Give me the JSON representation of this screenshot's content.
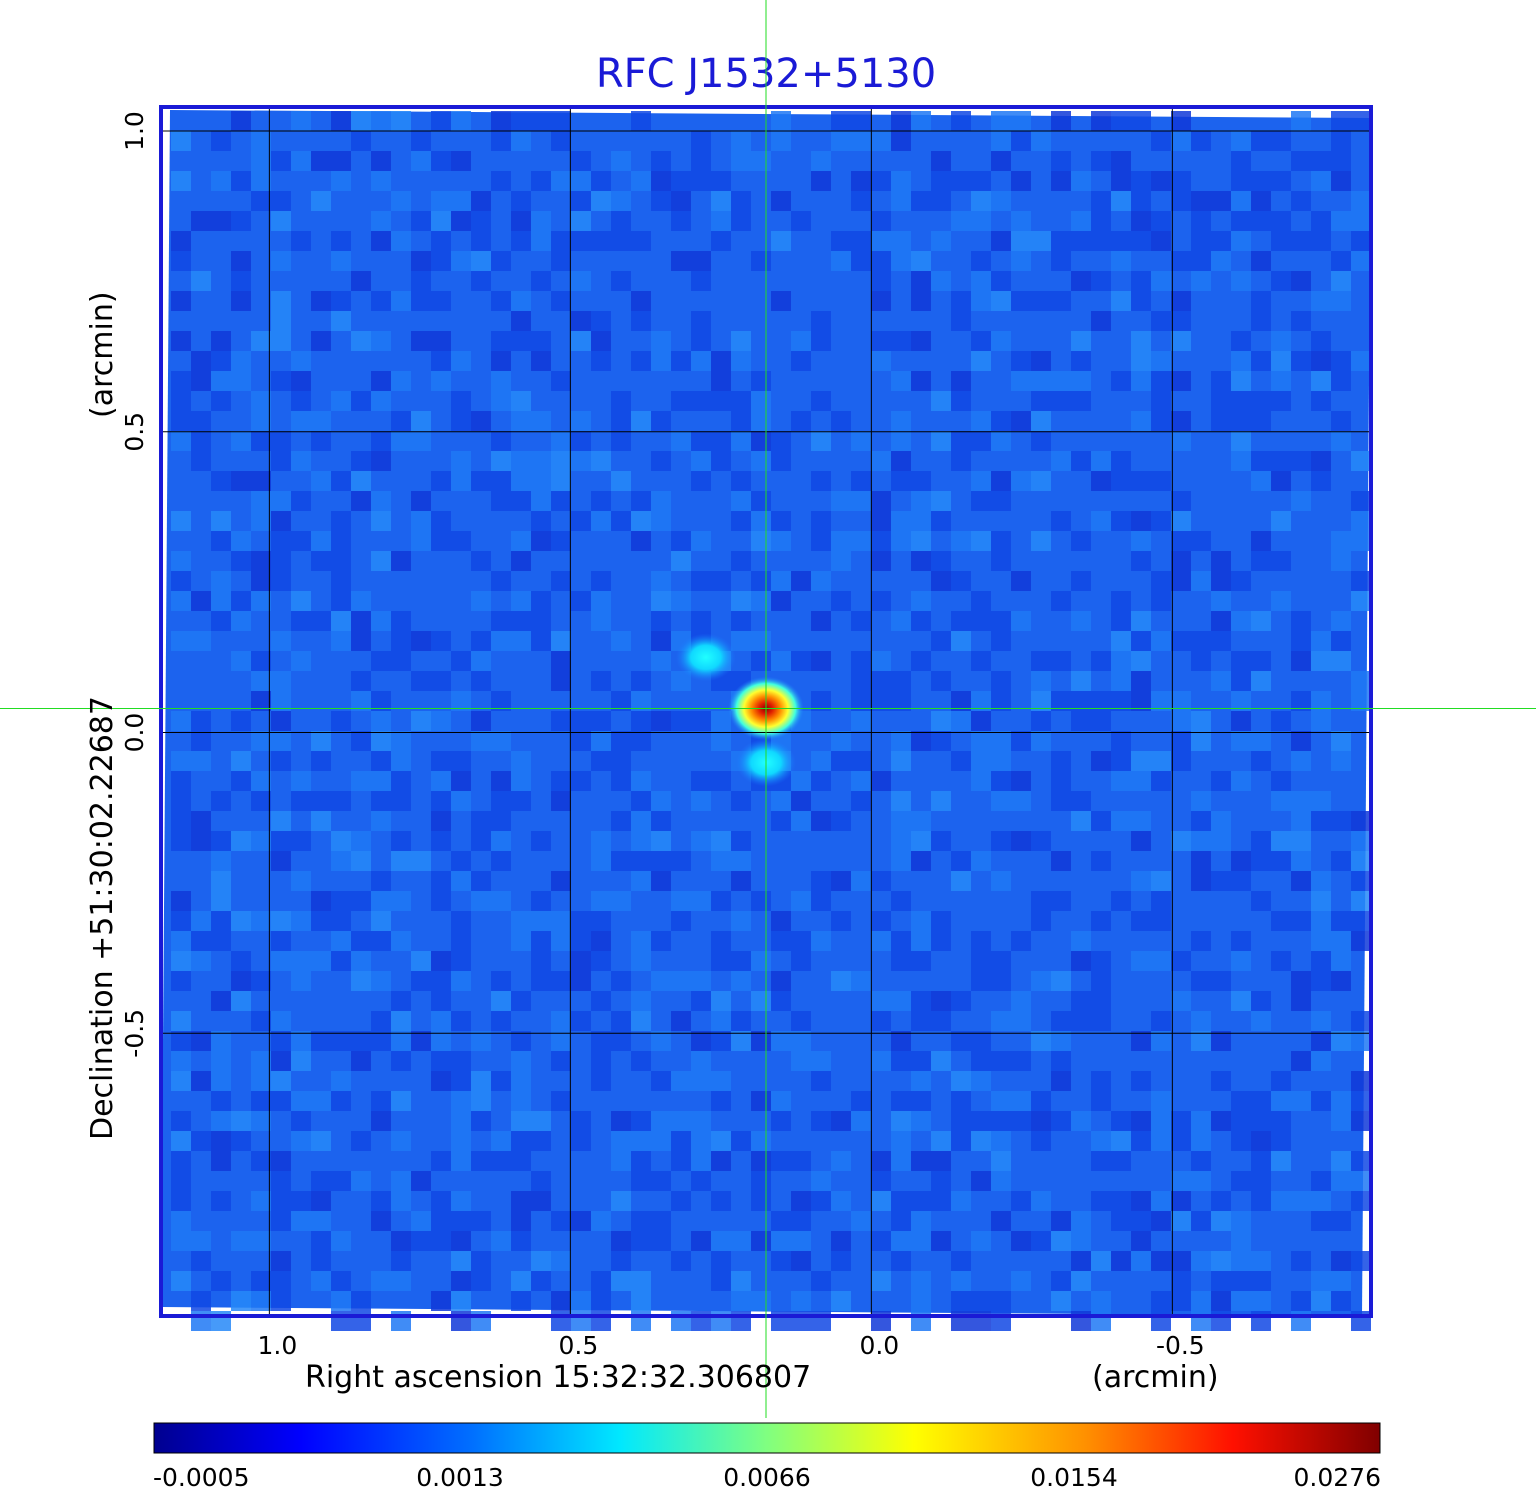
{
  "chart_data": {
    "type": "heatmap",
    "title": "RFC J1532+5130",
    "xlabel": "Right ascension  15:32:32.306807",
    "xunit": "(arcmin)",
    "ylabel": "Declination  +51:30:02.22687",
    "yunit": "(arcmin)",
    "xlim": [
      1.18,
      -0.83
    ],
    "ylim": [
      -0.97,
      1.04
    ],
    "xticks": [
      1.0,
      0.5,
      0.0,
      -0.5
    ],
    "xtick_labels": [
      "1.0",
      "0.5",
      "0.0",
      "-0.5"
    ],
    "yticks": [
      -0.5,
      0.0,
      0.5,
      1.0
    ],
    "ytick_labels": [
      "-0.5",
      "0.0",
      "0.5",
      "1.0"
    ],
    "grid": true,
    "crosshair": {
      "x": 0.175,
      "y": 0.04,
      "color": "#22dd22"
    },
    "frame_color": "#1a1ad6",
    "colormap": "jet",
    "colorbar": {
      "placement": "bottom",
      "tick_labels": [
        "-0.0005",
        "0.0013",
        "0.0066",
        "0.0154",
        "0.0276"
      ]
    },
    "sources": [
      {
        "x": 0.175,
        "y": 0.04,
        "intensity": 0.0276,
        "shape": "core"
      },
      {
        "x": 0.275,
        "y": 0.125,
        "intensity": 0.0018,
        "shape": "blob"
      },
      {
        "x": 0.175,
        "y": -0.05,
        "intensity": 0.0019,
        "shape": "blob"
      }
    ]
  }
}
